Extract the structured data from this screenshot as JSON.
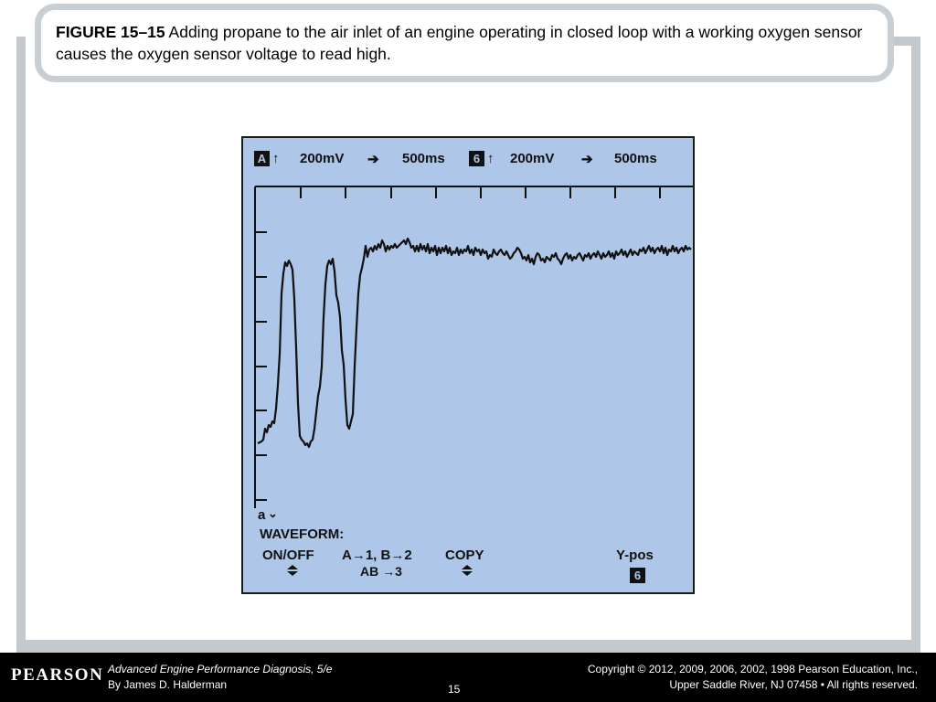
{
  "caption": {
    "figure_label": "FIGURE 15–15",
    "text": "Adding propane to the air inlet of an engine operating in closed loop with a working oxygen sensor causes the oxygen sensor voltage to read high."
  },
  "scope": {
    "header": {
      "channel_a": "A",
      "channel_a_volts": "200mV",
      "channel_a_time": "500ms",
      "channel_b": "6",
      "channel_b_volts": "200mV",
      "channel_b_time": "500ms"
    },
    "cursor_label": "a",
    "waveform_label": "WAVEFORM:",
    "menu": {
      "onoff": "ON/OFF",
      "assign_line1": "A→1, B→2",
      "assign_line2": "AB →3",
      "copy": "COPY",
      "ypos": "Y-pos",
      "ypos_box": "6"
    }
  },
  "footer": {
    "logo": "PEARSON",
    "book_title": "Advanced Engine Performance Diagnosis, 5/e",
    "author": "By James D. Halderman",
    "page": "15",
    "copyright": "Copyright © 2012, 2009, 2006, 2002, 1998 Pearson Education, Inc.,",
    "address": "Upper Saddle River, NJ 07458 • All rights reserved."
  },
  "colors": {
    "screen_bg": "#aec6e8",
    "trace": "#111111",
    "frame": "#c3c8cd"
  }
}
